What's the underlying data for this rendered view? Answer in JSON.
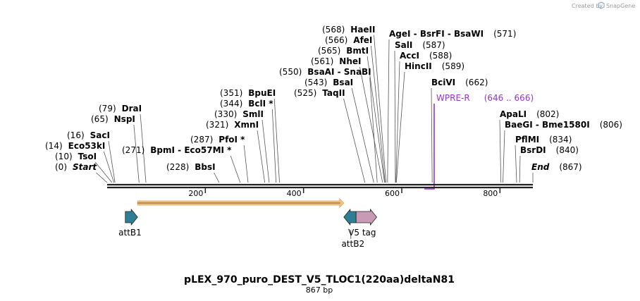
{
  "credit": {
    "prefix": "Created by",
    "brand": "SnapGene"
  },
  "title": "pLEX_970_puro_DEST_V5_TLOC1(220aa)deltaN81",
  "length_label": "867 bp",
  "map": {
    "total_bp": 867,
    "ticks": [
      200,
      400,
      600,
      800
    ]
  },
  "sites": [
    {
      "text": "Start",
      "pos": "(0)",
      "bp": 0,
      "style": "italic"
    },
    {
      "text": "TsoI",
      "pos": "(10)",
      "bp": 10
    },
    {
      "text": "Eco53kI",
      "pos": "(14)",
      "bp": 14
    },
    {
      "text": "SacI",
      "pos": "(16)",
      "bp": 16
    },
    {
      "text": "NspI",
      "pos": "(65)",
      "bp": 65
    },
    {
      "text": "DraI",
      "pos": "(79)",
      "bp": 79
    },
    {
      "text": "BbsI",
      "pos": "(228)",
      "bp": 228
    },
    {
      "text": "BpmI - Eco57MI *",
      "pos": "(271)",
      "bp": 271
    },
    {
      "text": "PfoI *",
      "pos": "(287)",
      "bp": 287
    },
    {
      "text": "XmnI",
      "pos": "(321)",
      "bp": 321
    },
    {
      "text": "SmlI",
      "pos": "(330)",
      "bp": 330
    },
    {
      "text": "BclI *",
      "pos": "(344)",
      "bp": 344
    },
    {
      "text": "BpuEI",
      "pos": "(351)",
      "bp": 351
    },
    {
      "text": "TaqII",
      "pos": "(525)",
      "bp": 525
    },
    {
      "text": "BsaI",
      "pos": "(543)",
      "bp": 543
    },
    {
      "text": "BsaAI - SnaBI",
      "pos": "(550)",
      "bp": 550
    },
    {
      "text": "NheI",
      "pos": "(561)",
      "bp": 561
    },
    {
      "text": "BmtI",
      "pos": "(565)",
      "bp": 565
    },
    {
      "text": "AfeI",
      "pos": "(566)",
      "bp": 566
    },
    {
      "text": "HaeII",
      "pos": "(568)",
      "bp": 568
    },
    {
      "text": "AgeI - BsrFI - BsaWI",
      "pos": "(571)",
      "bp": 571
    },
    {
      "text": "SalI",
      "pos": "(587)",
      "bp": 587
    },
    {
      "text": "AccI",
      "pos": "(588)",
      "bp": 588
    },
    {
      "text": "HincII",
      "pos": "(589)",
      "bp": 589
    },
    {
      "text": "BciVI",
      "pos": "(662)",
      "bp": 662
    },
    {
      "text": "ApaLI",
      "pos": "(802)",
      "bp": 802
    },
    {
      "text": "BaeGI - Bme1580I",
      "pos": "(806)",
      "bp": 806
    },
    {
      "text": "PflMI",
      "pos": "(834)",
      "bp": 834
    },
    {
      "text": "BsrDI",
      "pos": "(840)",
      "bp": 840
    },
    {
      "text": "End",
      "pos": "(867)",
      "bp": 867,
      "style": "italic"
    }
  ],
  "primer": {
    "text": "WPRE-R",
    "range": "(646 .. 666)",
    "bp_start": 646,
    "bp_end": 666,
    "color": "#9b30d0"
  },
  "features": [
    {
      "name": "attB1",
      "bp_start": 37,
      "bp_end": 62,
      "direction": "forward",
      "color": "#2e7f96"
    },
    {
      "name": "attB2",
      "bp_start": 482,
      "bp_end": 507,
      "direction": "reverse",
      "color": "#2e7f96"
    },
    {
      "name": "V5 tag",
      "bp_start": 507,
      "bp_end": 549,
      "direction": "forward",
      "color": "#c99ab5"
    }
  ],
  "orf": {
    "bp_start": 62,
    "bp_end": 482,
    "color": "#f2c48a"
  }
}
